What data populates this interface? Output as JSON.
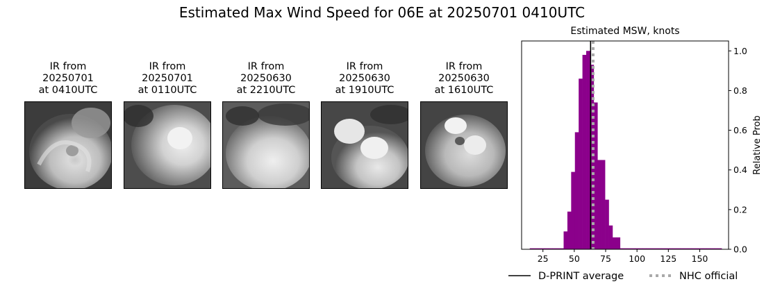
{
  "figure": {
    "title": "Estimated Max Wind Speed for 06E at 20250701 0410UTC"
  },
  "ir_panels": [
    {
      "caption": "IR from\n20250701\nat 0410UTC"
    },
    {
      "caption": "IR from\n20250701\nat 0110UTC"
    },
    {
      "caption": "IR from\n20250630\nat 2210UTC"
    },
    {
      "caption": "IR from\n20250630\nat 1910UTC"
    },
    {
      "caption": "IR from\n20250630\nat 1610UTC"
    }
  ],
  "chart_data": {
    "type": "bar",
    "title": "Estimated MSW, knots",
    "xlabel": "",
    "ylabel": "Relative Prob",
    "xlim": [
      8,
      173
    ],
    "ylim": [
      0,
      1.05
    ],
    "xticks": [
      25,
      50,
      75,
      100,
      125,
      150
    ],
    "yticks": [
      0.0,
      0.2,
      0.4,
      0.6,
      0.8,
      1.0
    ],
    "y_axis_side": "right",
    "bin_width": 3,
    "bar_color": "#8b008b",
    "bins": [
      {
        "x": 16,
        "value": 0.005
      },
      {
        "x": 19,
        "value": 0.005
      },
      {
        "x": 22,
        "value": 0.005
      },
      {
        "x": 25,
        "value": 0.005
      },
      {
        "x": 28,
        "value": 0.005
      },
      {
        "x": 31,
        "value": 0.005
      },
      {
        "x": 34,
        "value": 0.005
      },
      {
        "x": 37,
        "value": 0.005
      },
      {
        "x": 40,
        "value": 0.005
      },
      {
        "x": 43,
        "value": 0.09
      },
      {
        "x": 46,
        "value": 0.19
      },
      {
        "x": 49,
        "value": 0.39
      },
      {
        "x": 52,
        "value": 0.59
      },
      {
        "x": 55,
        "value": 0.86
      },
      {
        "x": 58,
        "value": 0.98
      },
      {
        "x": 61,
        "value": 1.0
      },
      {
        "x": 64,
        "value": 0.93
      },
      {
        "x": 67,
        "value": 0.74
      },
      {
        "x": 70,
        "value": 0.45
      },
      {
        "x": 73,
        "value": 0.45
      },
      {
        "x": 76,
        "value": 0.25
      },
      {
        "x": 79,
        "value": 0.12
      },
      {
        "x": 82,
        "value": 0.06
      },
      {
        "x": 85,
        "value": 0.06
      },
      {
        "x": 88,
        "value": 0.005
      },
      {
        "x": 91,
        "value": 0.005
      },
      {
        "x": 94,
        "value": 0.005
      },
      {
        "x": 97,
        "value": 0.005
      },
      {
        "x": 100,
        "value": 0.005
      },
      {
        "x": 103,
        "value": 0.005
      },
      {
        "x": 106,
        "value": 0.005
      },
      {
        "x": 109,
        "value": 0.005
      },
      {
        "x": 112,
        "value": 0.005
      },
      {
        "x": 115,
        "value": 0.005
      },
      {
        "x": 118,
        "value": 0.005
      },
      {
        "x": 121,
        "value": 0.005
      },
      {
        "x": 124,
        "value": 0.005
      },
      {
        "x": 127,
        "value": 0.005
      },
      {
        "x": 130,
        "value": 0.005
      },
      {
        "x": 133,
        "value": 0.005
      },
      {
        "x": 136,
        "value": 0.005
      },
      {
        "x": 139,
        "value": 0.005
      },
      {
        "x": 142,
        "value": 0.005
      },
      {
        "x": 145,
        "value": 0.005
      },
      {
        "x": 148,
        "value": 0.005
      },
      {
        "x": 151,
        "value": 0.005
      },
      {
        "x": 154,
        "value": 0.005
      },
      {
        "x": 157,
        "value": 0.005
      },
      {
        "x": 160,
        "value": 0.005
      },
      {
        "x": 163,
        "value": 0.005
      },
      {
        "x": 166,
        "value": 0.005
      }
    ],
    "vlines": [
      {
        "name": "D-PRINT average",
        "x": 63,
        "color": "#000000",
        "style": "solid"
      },
      {
        "name": "NHC official",
        "x": 65,
        "color": "#a9a9a9",
        "style": "dotted"
      }
    ],
    "legend": {
      "placement": "bottom",
      "entries": [
        "D-PRINT average",
        "NHC official"
      ]
    }
  }
}
